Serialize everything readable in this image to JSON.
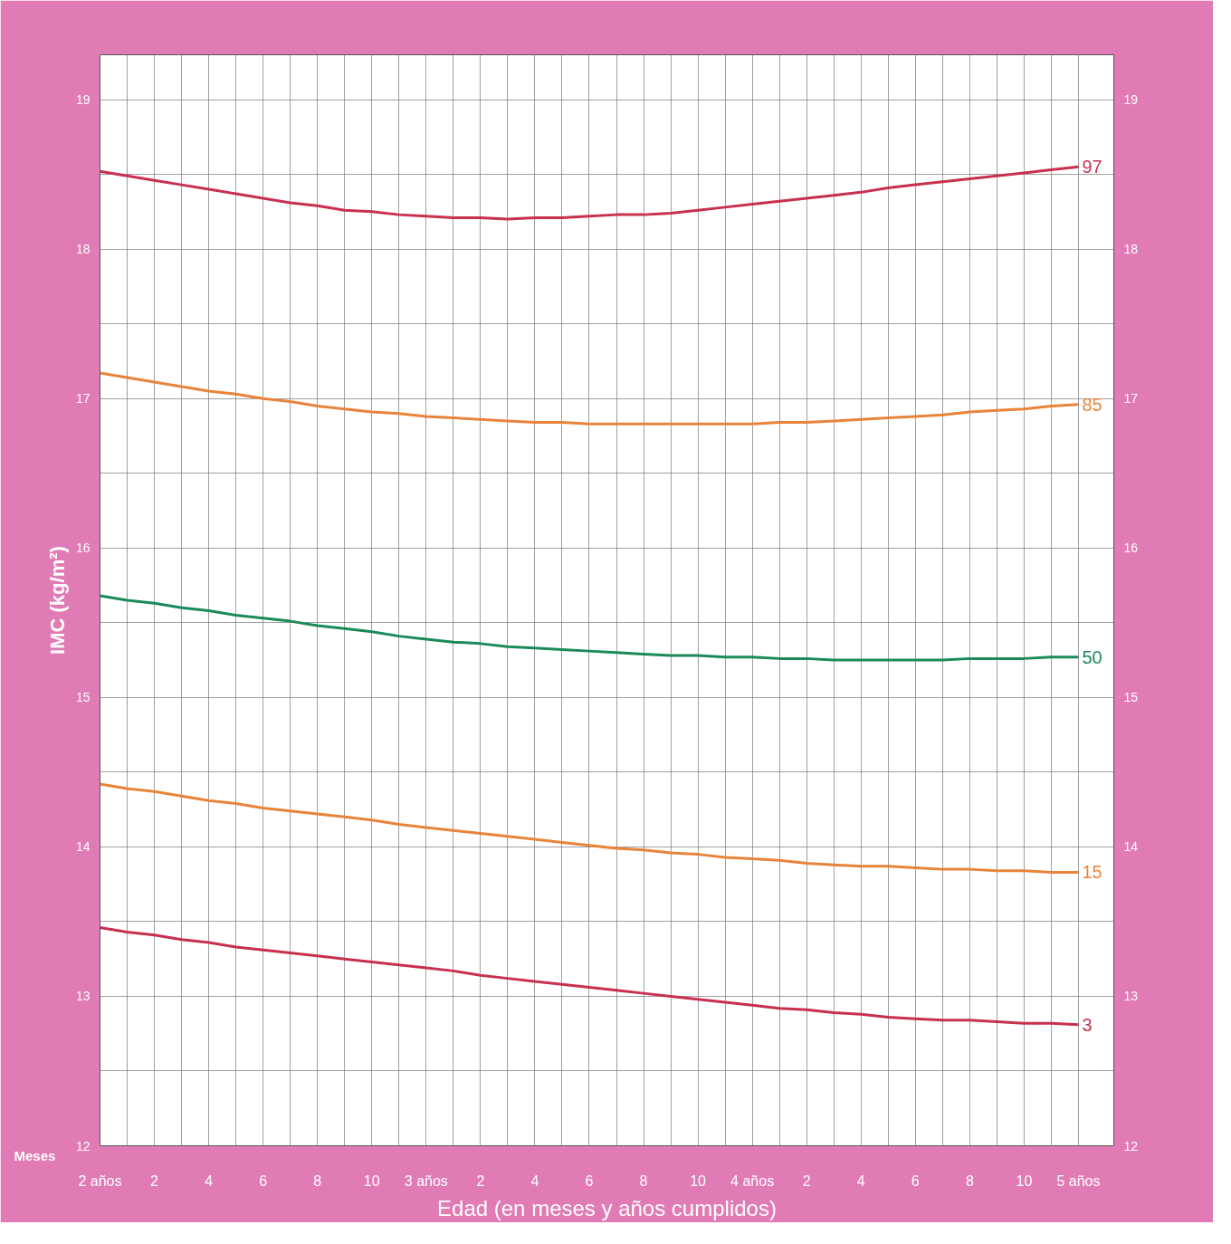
{
  "chart_data": {
    "type": "line",
    "xlabel": "Edad (en meses y años cumplidos)",
    "ylabel": "IMC (kg/m²)",
    "annotations": [
      "Meses"
    ],
    "categories": [
      "2 años",
      null,
      "2",
      null,
      "4",
      null,
      "6",
      null,
      "8",
      null,
      "10",
      null,
      "3 años",
      null,
      "2",
      null,
      "4",
      null,
      "6",
      null,
      "8",
      null,
      "10",
      null,
      "4 años",
      null,
      "2",
      null,
      "4",
      null,
      "6",
      null,
      "8",
      null,
      "10",
      null,
      "5 años"
    ],
    "ylim": [
      12,
      19.3
    ],
    "yticks": [
      12,
      {
        "value": 12.5,
        "label": null
      },
      13,
      {
        "value": 13.5,
        "label": null
      },
      14,
      {
        "value": 14.5,
        "label": null
      },
      15,
      {
        "value": 15.5,
        "label": null
      },
      16,
      {
        "value": 16.5,
        "label": null
      },
      17,
      {
        "value": 17.5,
        "label": null
      },
      18,
      {
        "value": 18.5,
        "label": null
      },
      19
    ],
    "y2lim": [
      12,
      19.3
    ],
    "y2ticks": [
      12,
      13,
      14,
      15,
      16,
      17,
      18,
      19
    ],
    "grid": true,
    "marker": "none",
    "line_style": "solid",
    "series": [
      {
        "name": "97",
        "color": "#c8304e",
        "values": [
          18.52,
          18.49,
          18.46,
          18.43,
          18.4,
          18.37,
          18.34,
          18.31,
          18.29,
          18.26,
          18.25,
          18.23,
          18.22,
          18.21,
          18.21,
          18.2,
          18.21,
          18.21,
          18.22,
          18.23,
          18.23,
          18.24,
          18.26,
          18.28,
          18.3,
          18.32,
          18.34,
          18.36,
          18.38,
          18.41,
          18.43,
          18.45,
          18.47,
          18.49,
          18.51,
          18.53,
          18.55
        ]
      },
      {
        "name": "85",
        "color": "#e8843a",
        "values": [
          17.17,
          17.14,
          17.11,
          17.08,
          17.05,
          17.03,
          17.0,
          16.98,
          16.95,
          16.93,
          16.91,
          16.9,
          16.88,
          16.87,
          16.86,
          16.85,
          16.84,
          16.84,
          16.83,
          16.83,
          16.83,
          16.83,
          16.83,
          16.83,
          16.83,
          16.84,
          16.84,
          16.85,
          16.86,
          16.87,
          16.88,
          16.89,
          16.91,
          16.92,
          16.93,
          16.95,
          16.96
        ]
      },
      {
        "name": "50",
        "color": "#1a8a5a",
        "values": [
          15.68,
          15.65,
          15.63,
          15.6,
          15.58,
          15.55,
          15.53,
          15.51,
          15.48,
          15.46,
          15.44,
          15.41,
          15.39,
          15.37,
          15.36,
          15.34,
          15.33,
          15.32,
          15.31,
          15.3,
          15.29,
          15.28,
          15.28,
          15.27,
          15.27,
          15.26,
          15.26,
          15.25,
          15.25,
          15.25,
          15.25,
          15.25,
          15.26,
          15.26,
          15.26,
          15.27,
          15.27
        ]
      },
      {
        "name": "15",
        "color": "#e8843a",
        "values": [
          14.42,
          14.39,
          14.37,
          14.34,
          14.31,
          14.29,
          14.26,
          14.24,
          14.22,
          14.2,
          14.18,
          14.15,
          14.13,
          14.11,
          14.09,
          14.07,
          14.05,
          14.03,
          14.01,
          13.99,
          13.98,
          13.96,
          13.95,
          13.93,
          13.92,
          13.91,
          13.89,
          13.88,
          13.87,
          13.87,
          13.86,
          13.85,
          13.85,
          13.84,
          13.84,
          13.83,
          13.83
        ]
      },
      {
        "name": "3",
        "color": "#c8304e",
        "values": [
          13.46,
          13.43,
          13.41,
          13.38,
          13.36,
          13.33,
          13.31,
          13.29,
          13.27,
          13.25,
          13.23,
          13.21,
          13.19,
          13.17,
          13.14,
          13.12,
          13.1,
          13.08,
          13.06,
          13.04,
          13.02,
          13.0,
          12.98,
          12.96,
          12.94,
          12.92,
          12.91,
          12.89,
          12.88,
          12.86,
          12.85,
          12.84,
          12.84,
          12.83,
          12.82,
          12.82,
          12.81
        ]
      }
    ]
  }
}
